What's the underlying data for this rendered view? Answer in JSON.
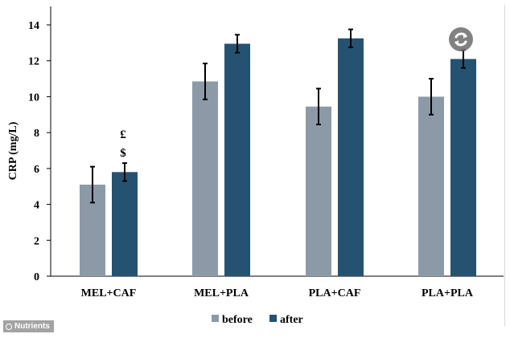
{
  "chart_data": {
    "type": "bar",
    "title": "",
    "xlabel": "",
    "ylabel": "CRP (mg/L)",
    "ylim": [
      0,
      14
    ],
    "yticks": [
      0,
      2,
      4,
      6,
      8,
      10,
      12,
      14
    ],
    "grid": false,
    "legend_position": "bottom",
    "categories": [
      "MEL+CAF",
      "MEL+PLA",
      "PLA+CAF",
      "PLA+PLA"
    ],
    "series": [
      {
        "name": "before",
        "color": "#8c9aa8",
        "values": [
          5.1,
          10.85,
          9.45,
          10.0
        ],
        "errors": [
          1.0,
          1.0,
          1.0,
          1.0
        ]
      },
      {
        "name": "after",
        "color": "#265271",
        "values": [
          5.8,
          12.95,
          13.25,
          12.1
        ],
        "errors": [
          0.5,
          0.5,
          0.5,
          0.5
        ]
      }
    ],
    "annotations": [
      {
        "category": "MEL+CAF",
        "series": "after",
        "lines": [
          "£",
          "$"
        ]
      }
    ]
  },
  "watermark": {
    "text": "Nutrients",
    "icon": "nutrients-logo-icon"
  },
  "badge": {
    "icon": "refresh-icon"
  }
}
